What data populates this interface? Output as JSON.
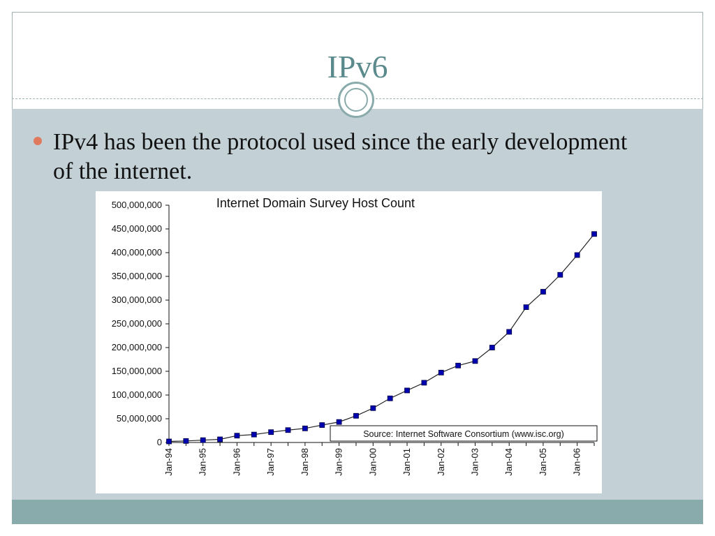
{
  "slide": {
    "title": "IPv6",
    "bullets": [
      "IPv4 has been the protocol used since the early development of the internet."
    ]
  },
  "colors": {
    "title": "#5a8a8c",
    "content_background": "#c3d1d6",
    "footer_band": "#8aabab",
    "bullet": "#e07a5f",
    "marker": "#0000b3"
  },
  "chart_data": {
    "type": "line",
    "title": "Internet Domain Survey Host Count",
    "annotation": "Source: Internet Software Consortium (www.isc.org)",
    "ylim": [
      0,
      500000000
    ],
    "y_ticks": [
      0,
      50000000,
      100000000,
      150000000,
      200000000,
      250000000,
      300000000,
      350000000,
      400000000,
      450000000,
      500000000
    ],
    "y_tick_labels": [
      "0",
      "50,000,000",
      "100,000,000",
      "150,000,000",
      "200,000,000",
      "250,000,000",
      "300,000,000",
      "350,000,000",
      "400,000,000",
      "450,000,000",
      "500,000,000"
    ],
    "x_tick_labels": [
      "Jan-94",
      "Jan-95",
      "Jan-96",
      "Jan-97",
      "Jan-98",
      "Jan-99",
      "Jan-00",
      "Jan-01",
      "Jan-02",
      "Jan-03",
      "Jan-04",
      "Jan-05",
      "Jan-06"
    ],
    "x": [
      "Jan-94",
      "Jul-94",
      "Jan-95",
      "Jul-95",
      "Jan-96",
      "Jul-96",
      "Jan-97",
      "Jul-97",
      "Jan-98",
      "Jul-98",
      "Jan-99",
      "Jul-99",
      "Jan-00",
      "Jul-00",
      "Jan-01",
      "Jul-01",
      "Jan-02",
      "Jul-02",
      "Jan-03",
      "Jul-03",
      "Jan-04",
      "Jul-04",
      "Jan-05",
      "Jul-05",
      "Jan-06",
      "Jul-06"
    ],
    "series": [
      {
        "values": [
          2200000,
          3200000,
          4900000,
          6600000,
          14400000,
          16700000,
          21800000,
          26100000,
          29700000,
          36700000,
          43200000,
          56200000,
          72400000,
          93000000,
          109600000,
          125900000,
          147300000,
          162100000,
          171600000,
          200000000,
          233100000,
          285100000,
          317600000,
          353300000,
          394900000,
          439300000
        ]
      }
    ],
    "grid": false,
    "legend": "none"
  }
}
